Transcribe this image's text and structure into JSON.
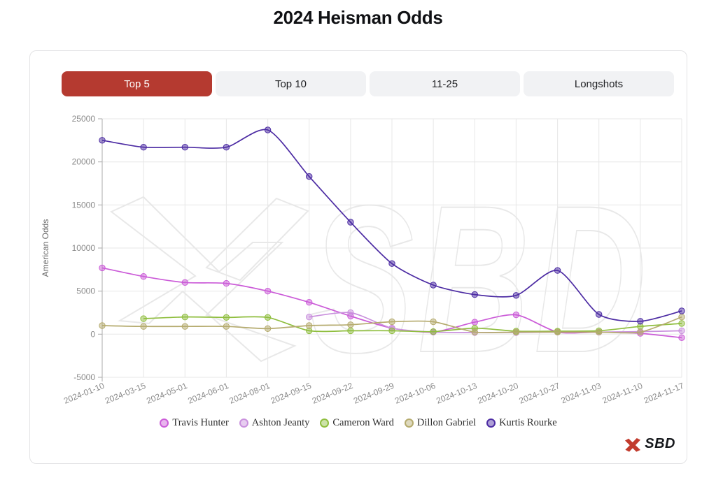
{
  "page_title": "2024 Heisman Odds",
  "tabs": [
    {
      "label": "Top 5",
      "active": true
    },
    {
      "label": "Top 10",
      "active": false
    },
    {
      "label": "11-25",
      "active": false
    },
    {
      "label": "Longshots",
      "active": false
    }
  ],
  "watermark_text": "SBD",
  "brand": {
    "name": "SBD"
  },
  "colors": {
    "accent_red": "#b53a30",
    "tab_bg": "#f1f2f4",
    "card_border": "#e3e3e5",
    "grid": "#e7e7e7",
    "axis": "#ababab",
    "tick_text": "#8a8a8a",
    "axis_title": "#666666",
    "watermark": "#e8e8e8",
    "legend_text": "#2e2e2e",
    "logo_red": "#c23b2d",
    "logo_text": "#16181c"
  },
  "chart_data": {
    "type": "line",
    "title": "2024 Heisman Odds",
    "xlabel": "",
    "ylabel": "American Odds",
    "ylim": [
      -5000,
      25000
    ],
    "ytick_step": 5000,
    "grid": true,
    "legend_position": "bottom",
    "categories": [
      "2024-01-10",
      "2024-03-15",
      "2024-05-01",
      "2024-06-01",
      "2024-08-01",
      "2024-09-15",
      "2024-09-22",
      "2024-09-29",
      "2024-10-06",
      "2024-10-13",
      "2024-10-20",
      "2024-10-27",
      "2024-11-03",
      "2024-11-10",
      "2024-11-17"
    ],
    "series": [
      {
        "name": "Travis Hunter",
        "color": "#cb5bd8",
        "values": [
          7700,
          6700,
          6000,
          5900,
          5000,
          3700,
          2100,
          700,
          250,
          1400,
          2250,
          250,
          250,
          100,
          -400
        ]
      },
      {
        "name": "Ashton Jeanty",
        "color": "#c990dd",
        "values": [
          null,
          null,
          null,
          null,
          null,
          2000,
          2500,
          700,
          250,
          200,
          200,
          250,
          250,
          300,
          400
        ]
      },
      {
        "name": "Cameron Ward",
        "color": "#8fbe3e",
        "values": [
          null,
          1800,
          2000,
          1950,
          1950,
          400,
          400,
          400,
          300,
          700,
          350,
          350,
          400,
          900,
          1250
        ]
      },
      {
        "name": "Dillon Gabriel",
        "color": "#b5ab6e",
        "values": [
          1000,
          900,
          900,
          900,
          650,
          1000,
          1100,
          1450,
          1450,
          250,
          250,
          250,
          250,
          250,
          2000
        ]
      },
      {
        "name": "Kurtis Rourke",
        "color": "#4c2ba3",
        "values": [
          22500,
          21700,
          21700,
          21700,
          23700,
          18300,
          13000,
          8200,
          5700,
          4600,
          4500,
          7400,
          2300,
          1500,
          2700
        ]
      }
    ]
  }
}
